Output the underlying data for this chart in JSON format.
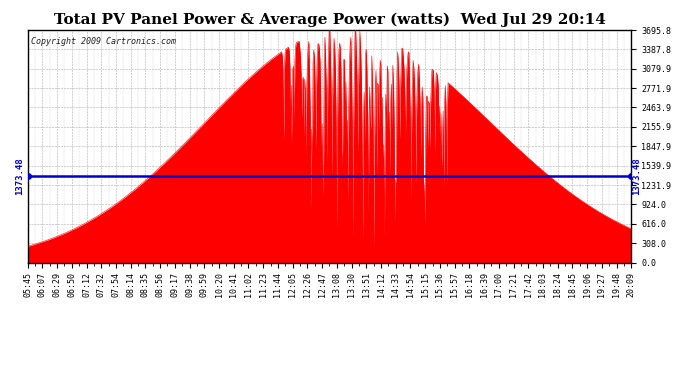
{
  "title": "Total PV Panel Power & Average Power (watts)  Wed Jul 29 20:14",
  "copyright": "Copyright 2009 Cartronics.com",
  "avg_power": 1373.48,
  "y_max": 3695.8,
  "y_min": 0.0,
  "ytick_labels": [
    "0.0",
    "308.0",
    "616.0",
    "924.0",
    "1231.9",
    "1539.9",
    "1847.9",
    "2155.9",
    "2463.9",
    "2771.9",
    "3079.9",
    "3387.8",
    "3695.8"
  ],
  "ytick_values": [
    0.0,
    308.0,
    616.0,
    924.0,
    1231.9,
    1539.9,
    1847.9,
    2155.9,
    2463.9,
    2771.9,
    3079.9,
    3387.8,
    3695.8
  ],
  "xtick_labels": [
    "05:45",
    "06:07",
    "06:29",
    "06:50",
    "07:12",
    "07:32",
    "07:54",
    "08:14",
    "08:35",
    "08:56",
    "09:17",
    "09:38",
    "09:59",
    "10:20",
    "10:41",
    "11:02",
    "11:23",
    "11:44",
    "12:05",
    "12:26",
    "12:47",
    "13:08",
    "13:30",
    "13:51",
    "14:12",
    "14:33",
    "14:54",
    "15:15",
    "15:36",
    "15:57",
    "16:18",
    "16:39",
    "17:00",
    "17:21",
    "17:42",
    "18:03",
    "18:24",
    "18:45",
    "19:06",
    "19:27",
    "19:48",
    "20:09"
  ],
  "fill_color": "#ff0000",
  "avg_line_color": "#0000cc",
  "background_color": "#ffffff",
  "grid_color": "#999999",
  "border_color": "#000000",
  "title_fontsize": 11,
  "copyright_fontsize": 6,
  "tick_fontsize": 6,
  "avg_label_fontsize": 6.5
}
